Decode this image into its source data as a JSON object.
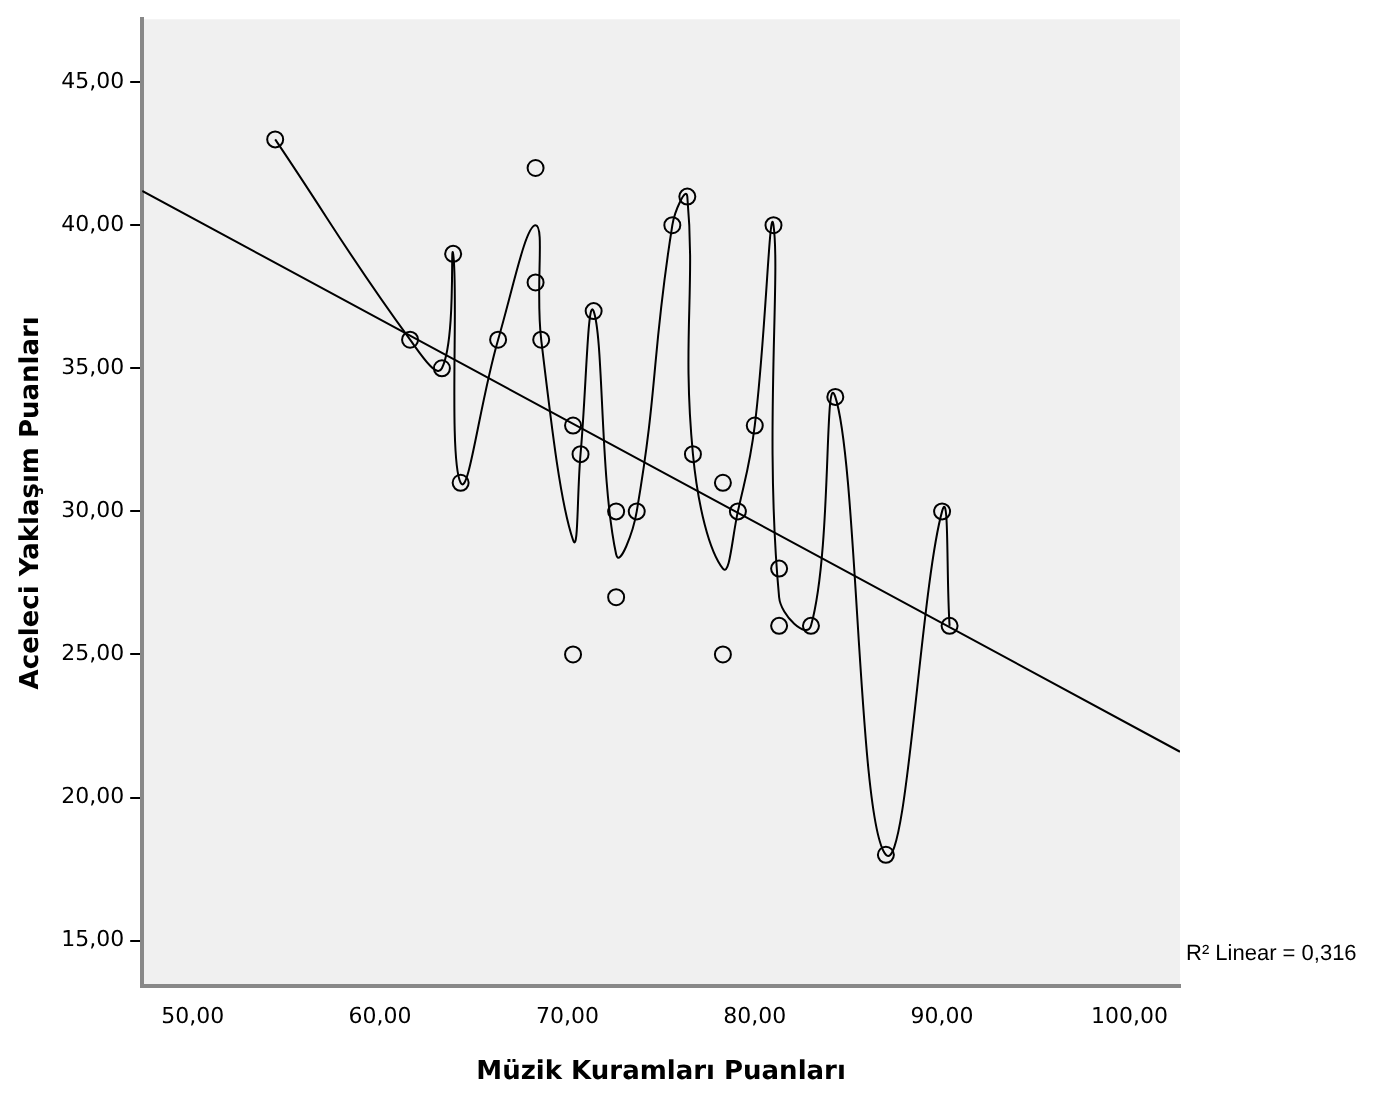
{
  "chart_data": {
    "type": "scatter",
    "xlabel": "Müzik Kuramları Puanları",
    "ylabel": "Aceleci Yaklaşım Puanları",
    "xlim": [
      47.3,
      102.7
    ],
    "ylim": [
      13.4,
      47.2
    ],
    "xticks": [
      {
        "value": 50,
        "label": "50,00"
      },
      {
        "value": 60,
        "label": "60,00"
      },
      {
        "value": 70,
        "label": "70,00"
      },
      {
        "value": 80,
        "label": "80,00"
      },
      {
        "value": 90,
        "label": "90,00"
      },
      {
        "value": 100,
        "label": "100,00"
      }
    ],
    "yticks": [
      {
        "value": 15,
        "label": "15,00"
      },
      {
        "value": 20,
        "label": "20,00"
      },
      {
        "value": 25,
        "label": "25,00"
      },
      {
        "value": 30,
        "label": "30,00"
      },
      {
        "value": 35,
        "label": "35,00"
      },
      {
        "value": 40,
        "label": "40,00"
      },
      {
        "value": 45,
        "label": "45,00"
      }
    ],
    "grid": false,
    "legend": false,
    "marker": "circle",
    "annotations": [
      "R² Linear = 0,316"
    ],
    "series": [
      {
        "color": "#000000",
        "x": [
          54.4,
          61.6,
          63.3,
          63.9,
          64.3,
          66.3,
          68.3,
          68.3,
          68.6,
          70.3,
          70.7,
          70.3,
          71.4,
          72.6,
          72.6,
          73.7,
          75.6,
          76.4,
          76.7,
          78.3,
          78.3,
          79.1,
          80.0,
          81.0,
          81.3,
          81.3,
          83.0,
          84.3,
          87.0,
          90.0,
          90.4
        ],
        "values": [
          43,
          36,
          35,
          39,
          31,
          36,
          42,
          38,
          36,
          33,
          32,
          25,
          37,
          30,
          27,
          30,
          40,
          41,
          32,
          31,
          25,
          30,
          33,
          40,
          28,
          26,
          26,
          34,
          18,
          30,
          26
        ]
      },
      {
        "type": "line",
        "color": "#000000",
        "marker": "none",
        "line_style": "solid",
        "x": [
          47.3,
          102.7
        ],
        "values": [
          41.2,
          21.6
        ]
      },
      {
        "type": "line",
        "color": "#000000",
        "marker": "none",
        "line_style": "solid",
        "x": [
          54.4,
          61.6,
          63.3,
          63.9,
          64.3,
          66.3,
          68.3,
          68.6,
          70.3,
          70.7,
          71.4,
          72.6,
          73.7,
          75.6,
          76.4,
          76.7,
          78.3,
          79.1,
          80.0,
          81.0,
          81.3,
          83.0,
          84.3,
          87.0,
          90.0,
          90.4
        ],
        "values": [
          43,
          36,
          35,
          39,
          31,
          36,
          40,
          36,
          29,
          32,
          37,
          28.5,
          30,
          40,
          41,
          32,
          28,
          30,
          33,
          40,
          27,
          26,
          34,
          18,
          30,
          26
        ]
      }
    ]
  }
}
